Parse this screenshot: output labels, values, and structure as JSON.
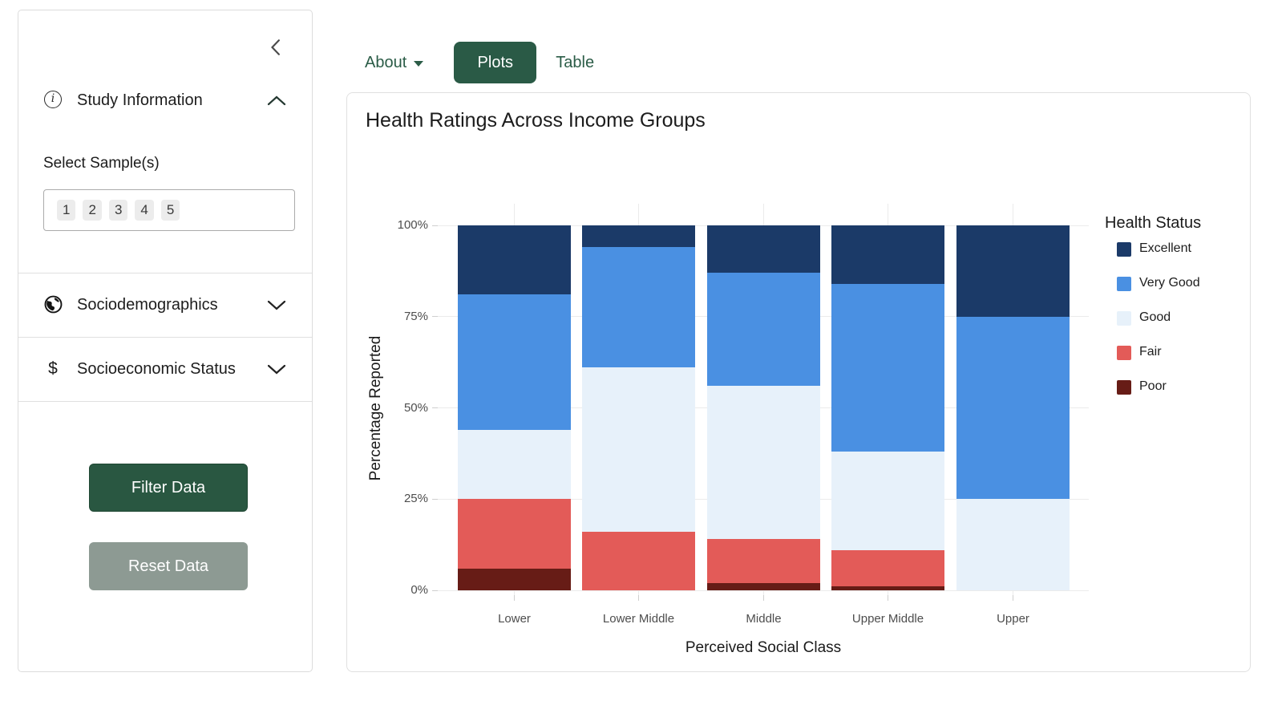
{
  "sidebar": {
    "sections": {
      "study_information": {
        "label": "Study Information",
        "icon": "info-circle",
        "icon_glyph": "i",
        "state": "expanded"
      },
      "sociodemographics": {
        "label": "Sociodemographics",
        "icon": "globe",
        "state": "collapsed"
      },
      "socioeconomic_status": {
        "label": "Socioeconomic Status",
        "icon": "dollar",
        "icon_glyph": "$",
        "state": "collapsed"
      }
    },
    "select_samples": {
      "label": "Select Sample(s)",
      "selected": [
        "1",
        "2",
        "3",
        "4",
        "5"
      ]
    },
    "buttons": {
      "filter": "Filter Data",
      "reset": "Reset Data"
    }
  },
  "tabs": {
    "about": "About",
    "plots": "Plots",
    "table": "Table",
    "active": "Plots"
  },
  "chart_data": {
    "type": "bar",
    "stacked": true,
    "percent": true,
    "title": "Health Ratings Across Income Groups",
    "xlabel": "Perceived Social Class",
    "ylabel": "Percentage Reported",
    "categories": [
      "Lower",
      "Lower Middle",
      "Middle",
      "Upper Middle",
      "Upper"
    ],
    "yticks": [
      {
        "value": 0,
        "label": "0%"
      },
      {
        "value": 25,
        "label": "25%"
      },
      {
        "value": 50,
        "label": "50%"
      },
      {
        "value": 75,
        "label": "75%"
      },
      {
        "value": 100,
        "label": "100%"
      }
    ],
    "ylim": [
      0,
      100
    ],
    "grid": true,
    "legend_title": "Health Status",
    "legend_position": "right",
    "legend_order_top_to_bottom": [
      "Excellent",
      "Very Good",
      "Good",
      "Fair",
      "Poor"
    ],
    "series": [
      {
        "name": "Poor",
        "color": "#671c16",
        "values": [
          6,
          0,
          2,
          1,
          0
        ]
      },
      {
        "name": "Fair",
        "color": "#e35b58",
        "values": [
          19,
          16,
          12,
          10,
          0
        ]
      },
      {
        "name": "Good",
        "color": "#e7f1fa",
        "values": [
          19,
          45,
          42,
          27,
          25
        ]
      },
      {
        "name": "Very Good",
        "color": "#4a90e2",
        "values": [
          37,
          33,
          31,
          46,
          50
        ]
      },
      {
        "name": "Excellent",
        "color": "#1b3a68",
        "values": [
          19,
          6,
          13,
          16,
          25
        ]
      }
    ]
  },
  "colors": {
    "accent_green": "#2a5a46",
    "link_green": "#2b5c47",
    "filter_button_green": "#295741",
    "reset_button_gray": "#8d9a93",
    "gridline": "#ebebeb",
    "tick": "#cfcfcf"
  }
}
